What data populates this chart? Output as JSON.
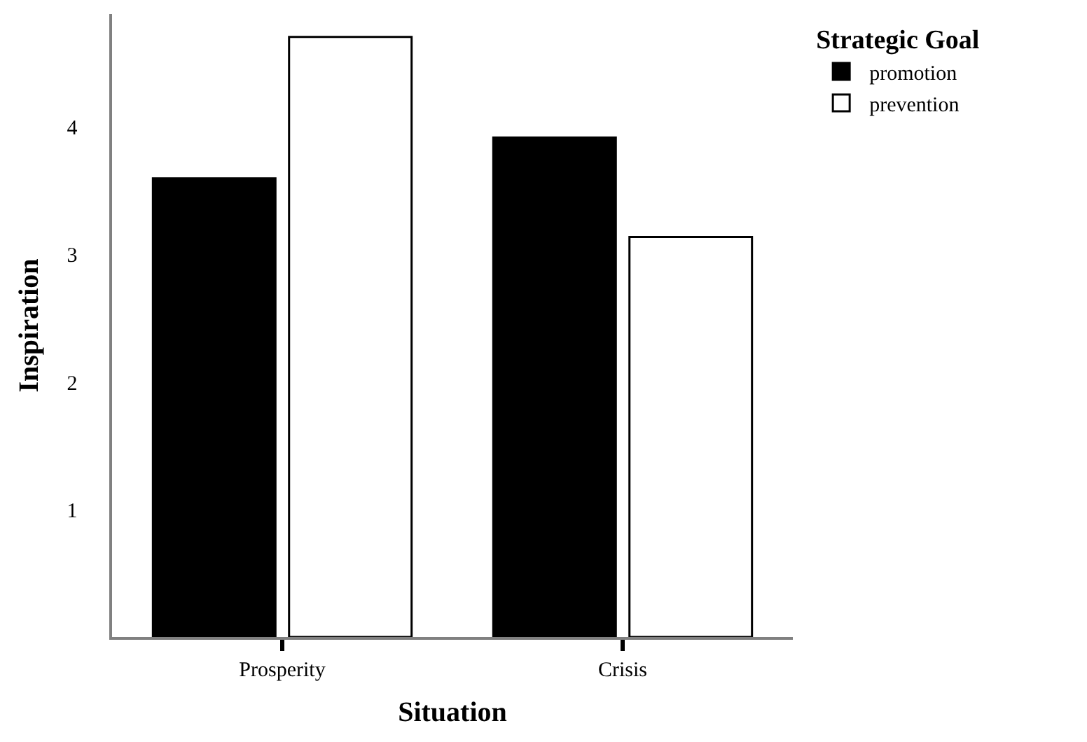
{
  "chart_data": {
    "type": "bar",
    "xlabel": "Situation",
    "ylabel": "Inspiration",
    "legend_title": "Strategic Goal",
    "categories": [
      "Prosperity",
      "Crisis"
    ],
    "series": [
      {
        "name": "promotion",
        "color": "#000000",
        "values": [
          3.6,
          3.92
        ]
      },
      {
        "name": "prevention",
        "color": "#ffffff",
        "values": [
          4.71,
          3.14
        ]
      }
    ],
    "ylim": [
      0,
      4.89
    ],
    "yticks": [
      1,
      2,
      3,
      4
    ],
    "legend": "top right"
  }
}
